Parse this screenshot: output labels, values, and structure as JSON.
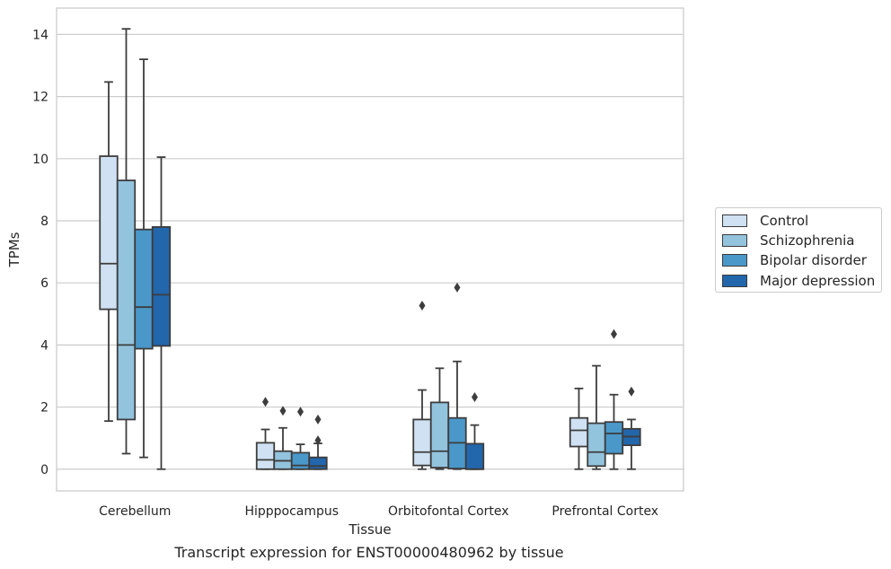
{
  "chart_data": {
    "type": "box",
    "caption": "Transcript expression for ENST00000480962 by tissue",
    "xlabel": "Tissue",
    "ylabel": "TPMs",
    "ylim": [
      -0.7,
      14.85
    ],
    "yticks": [
      0,
      2,
      4,
      6,
      8,
      10,
      12,
      14
    ],
    "grid": "horizontal",
    "legend_position": "right",
    "categories": [
      "Cerebellum",
      "Hipppocampus",
      "Orbitofontal Cortex",
      "Prefrontal Cortex"
    ],
    "series": [
      {
        "name": "Control",
        "color": "#cfe1f2",
        "boxes": [
          {
            "whislo": 1.55,
            "q1": 5.15,
            "med": 6.62,
            "q3": 10.08,
            "whishi": 12.47,
            "fliers": []
          },
          {
            "whislo": 0.0,
            "q1": 0.0,
            "med": 0.3,
            "q3": 0.85,
            "whishi": 1.28,
            "fliers": [
              2.17
            ]
          },
          {
            "whislo": 0.0,
            "q1": 0.12,
            "med": 0.55,
            "q3": 1.6,
            "whishi": 2.55,
            "fliers": [
              5.27
            ]
          },
          {
            "whislo": 0.0,
            "q1": 0.73,
            "med": 1.25,
            "q3": 1.65,
            "whishi": 2.6,
            "fliers": []
          }
        ]
      },
      {
        "name": "Schizophrenia",
        "color": "#93c4de",
        "boxes": [
          {
            "whislo": 0.5,
            "q1": 1.6,
            "med": 4.0,
            "q3": 9.3,
            "whishi": 14.18,
            "fliers": []
          },
          {
            "whislo": 0.0,
            "q1": 0.0,
            "med": 0.27,
            "q3": 0.58,
            "whishi": 1.33,
            "fliers": [
              1.88
            ]
          },
          {
            "whislo": 0.0,
            "q1": 0.05,
            "med": 0.58,
            "q3": 2.15,
            "whishi": 3.25,
            "fliers": []
          },
          {
            "whislo": 0.0,
            "q1": 0.1,
            "med": 0.55,
            "q3": 1.48,
            "whishi": 3.33,
            "fliers": []
          }
        ]
      },
      {
        "name": "Bipolar disorder",
        "color": "#4a98c9",
        "boxes": [
          {
            "whislo": 0.38,
            "q1": 3.88,
            "med": 5.22,
            "q3": 7.72,
            "whishi": 13.2,
            "fliers": []
          },
          {
            "whislo": 0.0,
            "q1": 0.0,
            "med": 0.12,
            "q3": 0.53,
            "whishi": 0.8,
            "fliers": [
              1.85
            ]
          },
          {
            "whislo": 0.0,
            "q1": 0.02,
            "med": 0.85,
            "q3": 1.65,
            "whishi": 3.47,
            "fliers": [
              5.85
            ]
          },
          {
            "whislo": 0.0,
            "q1": 0.5,
            "med": 1.15,
            "q3": 1.52,
            "whishi": 2.4,
            "fliers": [
              4.35
            ]
          }
        ]
      },
      {
        "name": "Major depression",
        "color": "#2266ac",
        "boxes": [
          {
            "whislo": 0.0,
            "q1": 3.97,
            "med": 5.62,
            "q3": 7.8,
            "whishi": 10.05,
            "fliers": []
          },
          {
            "whislo": 0.0,
            "q1": 0.0,
            "med": 0.1,
            "q3": 0.38,
            "whishi": 0.83,
            "fliers": [
              0.93,
              1.6
            ]
          },
          {
            "whislo": 0.0,
            "q1": 0.0,
            "med": 0.0,
            "q3": 0.82,
            "whishi": 1.42,
            "fliers": [
              2.32
            ]
          },
          {
            "whislo": 0.0,
            "q1": 0.77,
            "med": 1.05,
            "q3": 1.3,
            "whishi": 1.6,
            "fliers": [
              2.5
            ]
          }
        ]
      }
    ]
  }
}
